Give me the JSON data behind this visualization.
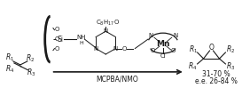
{
  "bg_color": "#ffffff",
  "fig_width": 2.73,
  "fig_height": 1.26,
  "dpi": 100,
  "elements": {
    "reagent": "MCPBA/NMO",
    "yield_line1": "31-70 %",
    "yield_line2": "e.e. 26-84 %",
    "c8h17o": "C$_8$H$_{17}$O"
  },
  "text_color": "#1a1a1a",
  "line_color": "#1a1a1a"
}
